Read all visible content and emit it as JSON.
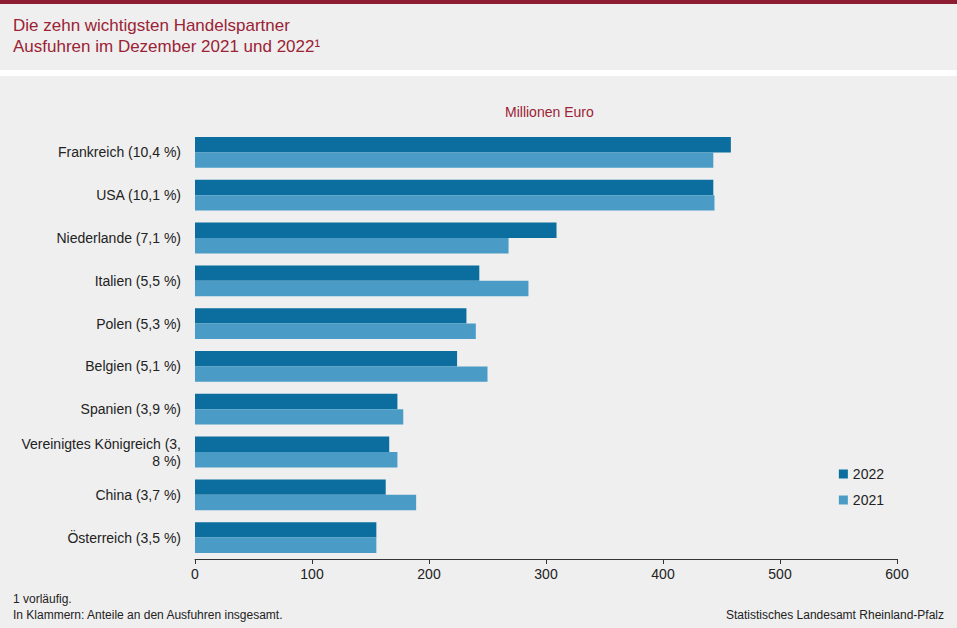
{
  "chart_data": {
    "type": "bar",
    "title": "Die zehn wichtigsten Handelspartner\nAusfuhren im Dezember 2021 und 2022¹",
    "x_label": "Millionen Euro",
    "orientation": "horizontal",
    "categories": [
      "Frankreich (10,4 %)",
      "USA (10,1 %)",
      "Niederlande (7,1 %)",
      "Italien (5,5 %)",
      "Polen (5,3 %)",
      "Belgien (5,1 %)",
      "Spanien (3,9 %)",
      "Vereinigtes Königreich (3,8 %)",
      "China (3,7 %)",
      "Österreich (3,5 %)"
    ],
    "series": [
      {
        "name": "2022",
        "color": "#0b6e9e",
        "values": [
          458,
          443,
          309,
          243,
          232,
          224,
          173,
          166,
          163,
          155
        ]
      },
      {
        "name": "2021",
        "color": "#4a9cc6",
        "values": [
          443,
          444,
          268,
          285,
          240,
          250,
          178,
          173,
          189,
          155
        ]
      }
    ],
    "xlim": [
      0,
      600
    ],
    "xticks": [
      0,
      100,
      200,
      300,
      400,
      500,
      600
    ],
    "grid": false,
    "legend": "lower right",
    "notes": [
      "1 vorläufig.",
      "In Klammern: Anteile an den Ausfuhren insgesamt."
    ],
    "source": "Statistisches Landesamt Rheinland-Pfalz"
  }
}
